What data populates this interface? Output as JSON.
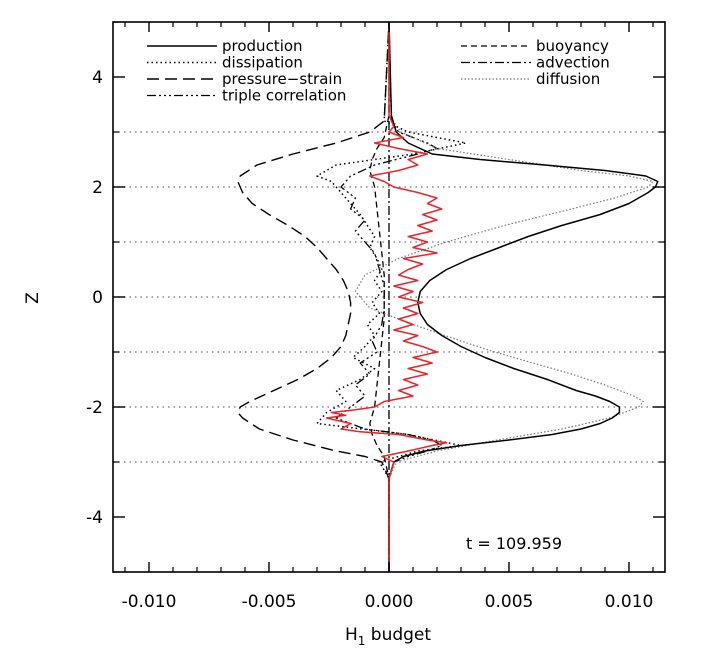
{
  "chart_data": {
    "type": "line",
    "xlabel": "H",
    "xlabel_sub": "1",
    "xlabel_rest": " budget",
    "ylabel": "Z",
    "xlim": [
      -0.0115,
      0.0115
    ],
    "ylim": [
      -5,
      5
    ],
    "x_ticks": [
      -0.01,
      -0.005,
      0.0,
      0.005,
      0.01
    ],
    "x_tick_labels": [
      "-0.010",
      "-0.005",
      "0.000",
      "0.005",
      "0.010"
    ],
    "y_ticks": [
      -4,
      -2,
      0,
      2,
      4
    ],
    "y_tick_labels": [
      "-4",
      "-2",
      "0",
      "2",
      "4"
    ],
    "reference_lines_y": [
      -3,
      -2,
      -1,
      0,
      1,
      2,
      3
    ],
    "annotation": "t  =  109.959",
    "legend": {
      "left": [
        {
          "label": "production",
          "style": "solid"
        },
        {
          "label": "dissipation",
          "style": "dotted"
        },
        {
          "label": "pressure−strain",
          "style": "longdash"
        },
        {
          "label": "triple correlation",
          "style": "dashdotdotdot"
        }
      ],
      "right": [
        {
          "label": "buoyancy",
          "style": "dashed"
        },
        {
          "label": "advection",
          "style": "dashdot"
        },
        {
          "label": "diffusion",
          "style": "grayfine"
        }
      ]
    },
    "series": [
      {
        "name": "production",
        "style": "solid",
        "color": "#000000",
        "z": [
          -5,
          -3.3,
          -3.0,
          -2.9,
          -2.8,
          -2.7,
          -2.6,
          -2.5,
          -2.4,
          -2.3,
          -2.2,
          -2.1,
          -2.0,
          -1.9,
          -1.8,
          -1.7,
          -1.5,
          -1.3,
          -1.1,
          -0.9,
          -0.7,
          -0.5,
          -0.3,
          -0.1,
          0.1,
          0.3,
          0.5,
          0.7,
          0.9,
          1.1,
          1.3,
          1.5,
          1.7,
          1.9,
          2.0,
          2.1,
          2.2,
          2.3,
          2.4,
          2.5,
          2.6,
          2.8,
          3.0,
          3.3,
          5
        ],
        "x": [
          0.0,
          0.0,
          0.0002,
          0.0006,
          0.0015,
          0.003,
          0.005,
          0.0068,
          0.008,
          0.0088,
          0.0093,
          0.0096,
          0.0096,
          0.0092,
          0.0086,
          0.0078,
          0.0066,
          0.0052,
          0.004,
          0.003,
          0.0022,
          0.0016,
          0.0013,
          0.0012,
          0.0013,
          0.0017,
          0.0024,
          0.0034,
          0.0046,
          0.0058,
          0.0072,
          0.0088,
          0.01,
          0.0108,
          0.0111,
          0.0112,
          0.0107,
          0.009,
          0.0065,
          0.0038,
          0.0018,
          0.0008,
          0.0003,
          0.0001,
          0.0
        ]
      },
      {
        "name": "dissipation",
        "style": "dotted",
        "color": "#000000",
        "z": [
          -5,
          -3.3,
          -3.0,
          -2.8,
          -2.7,
          -2.5,
          -2.3,
          -2.1,
          -1.9,
          -1.7,
          -1.5,
          -1.3,
          -1.1,
          -0.9,
          -0.7,
          -0.5,
          -0.3,
          -0.1,
          0.1,
          0.3,
          0.5,
          0.7,
          0.9,
          1.1,
          1.3,
          1.5,
          1.7,
          1.9,
          2.1,
          2.2,
          2.4,
          2.6,
          2.8,
          3.0,
          3.2,
          5
        ],
        "x": [
          0.0,
          0.0,
          -0.0004,
          0.0012,
          0.003,
          0.0008,
          -0.003,
          -0.0026,
          -0.0018,
          -0.0022,
          -0.0012,
          -0.0006,
          -0.0015,
          -0.001,
          -0.0006,
          -0.0009,
          -0.0004,
          -0.0007,
          -0.0003,
          -0.0006,
          -0.0003,
          -0.0005,
          -0.0008,
          -0.0006,
          -0.0009,
          -0.0012,
          -0.0016,
          -0.002,
          -0.0024,
          -0.003,
          -0.0022,
          0.001,
          0.0032,
          0.0008,
          -0.0002,
          0.0
        ]
      },
      {
        "name": "pressure−strain",
        "style": "longdash",
        "color": "#000000",
        "z": [
          -5,
          -3.3,
          -3.0,
          -2.9,
          -2.8,
          -2.6,
          -2.4,
          -2.2,
          -2.1,
          -2.0,
          -1.9,
          -1.7,
          -1.5,
          -1.3,
          -1.1,
          -0.9,
          -0.7,
          -0.5,
          -0.3,
          -0.1,
          0.1,
          0.3,
          0.5,
          0.7,
          0.9,
          1.1,
          1.3,
          1.5,
          1.7,
          1.9,
          2.1,
          2.2,
          2.4,
          2.6,
          2.8,
          3.0,
          3.2,
          5
        ],
        "x": [
          0.0,
          0.0,
          -0.0003,
          -0.001,
          -0.0022,
          -0.004,
          -0.0054,
          -0.0061,
          -0.0063,
          -0.0062,
          -0.0058,
          -0.0048,
          -0.0038,
          -0.003,
          -0.0024,
          -0.002,
          -0.0018,
          -0.0017,
          -0.0016,
          -0.0016,
          -0.0017,
          -0.0019,
          -0.0022,
          -0.0026,
          -0.003,
          -0.0035,
          -0.0042,
          -0.005,
          -0.0057,
          -0.0061,
          -0.0063,
          -0.0062,
          -0.0055,
          -0.004,
          -0.0022,
          -0.0008,
          -0.0002,
          0.0
        ]
      },
      {
        "name": "triple correlation",
        "style": "dashdotdotdot",
        "color": "#000000",
        "z": [
          -5,
          -3.3,
          -3.0,
          -2.9,
          -2.8,
          -2.7,
          -2.6,
          -2.5,
          -2.4,
          -2.2,
          -2.0,
          -1.8,
          -1.6,
          -1.4,
          -1.2,
          -1.0,
          -0.8,
          -0.5,
          -0.2,
          0.2,
          0.5,
          0.8,
          1.0,
          1.2,
          1.4,
          1.6,
          1.8,
          2.0,
          2.2,
          2.4,
          2.6,
          2.7,
          2.8,
          2.9,
          3.0,
          3.2,
          5
        ],
        "x": [
          0.0,
          0.0,
          0.0002,
          0.0008,
          0.0016,
          0.0022,
          0.0018,
          0.0008,
          -0.001,
          -0.0022,
          -0.0016,
          -0.001,
          -0.0014,
          -0.0008,
          -0.0012,
          -0.0005,
          -0.0007,
          -0.0003,
          -0.0002,
          -0.0002,
          -0.0004,
          -0.0006,
          -0.001,
          -0.0014,
          -0.001,
          -0.0016,
          -0.0014,
          -0.002,
          -0.0016,
          -0.0006,
          0.0012,
          0.002,
          0.0016,
          0.001,
          0.0004,
          0.0001,
          0.0
        ]
      },
      {
        "name": "buoyancy",
        "style": "dashed",
        "color": "#000000",
        "z": [
          -5,
          -3.3,
          -2.9,
          -2.7,
          -2.5,
          -2.3,
          -2.0,
          -1.6,
          -1.2,
          -0.8,
          -0.4,
          0.0,
          0.4,
          0.8,
          1.2,
          1.6,
          2.0,
          2.3,
          2.5,
          2.7,
          2.9,
          3.3,
          5
        ],
        "x": [
          0.0,
          0.0,
          -0.0002,
          -0.0005,
          -0.0007,
          -0.0008,
          -0.0006,
          -0.0005,
          -0.0004,
          -0.0003,
          -0.0002,
          -0.0002,
          -0.0002,
          -0.0003,
          -0.0004,
          -0.0005,
          -0.0006,
          -0.0008,
          -0.0007,
          -0.0005,
          -0.0002,
          0.0,
          0.0
        ]
      },
      {
        "name": "advection",
        "style": "dashdot",
        "color": "#000000",
        "z": [
          -5,
          5
        ],
        "x": [
          0.0,
          0.0
        ]
      },
      {
        "name": "diffusion",
        "style": "grayfine",
        "color": "#777777",
        "z": [
          -5,
          -3.3,
          -3.0,
          -2.8,
          -2.6,
          -2.4,
          -2.2,
          -2.0,
          -1.9,
          -1.8,
          -1.6,
          -1.4,
          -1.2,
          -1.0,
          -0.8,
          -0.5,
          -0.2,
          0.1,
          0.4,
          0.7,
          1.0,
          1.3,
          1.6,
          1.8,
          2.0,
          2.1,
          2.2,
          2.3,
          2.5,
          2.7,
          3.0,
          3.3,
          5
        ],
        "x": [
          0.0,
          0.0,
          0.0003,
          0.002,
          0.0045,
          0.0072,
          0.0092,
          0.0104,
          0.0106,
          0.0102,
          0.009,
          0.0076,
          0.006,
          0.0044,
          0.003,
          0.001,
          -0.0008,
          -0.0014,
          -0.001,
          0.0004,
          0.0024,
          0.0048,
          0.0076,
          0.0094,
          0.0108,
          0.011,
          0.01,
          0.008,
          0.005,
          0.002,
          0.0005,
          0.0,
          0.0
        ]
      },
      {
        "name": "sum",
        "style": "red",
        "color": "#e8262a",
        "z": [
          -5,
          -3.3,
          -3.0,
          -2.9,
          -2.8,
          -2.7,
          -2.65,
          -2.6,
          -2.5,
          -2.45,
          -2.4,
          -2.3,
          -2.2,
          -2.15,
          -2.1,
          -2.05,
          -2.0,
          -1.9,
          -1.8,
          -1.7,
          -1.6,
          -1.5,
          -1.4,
          -1.3,
          -1.2,
          -1.1,
          -1.0,
          -0.9,
          -0.8,
          -0.7,
          -0.6,
          -0.5,
          -0.4,
          -0.3,
          -0.2,
          -0.1,
          0.0,
          0.1,
          0.2,
          0.3,
          0.4,
          0.5,
          0.6,
          0.7,
          0.8,
          0.9,
          1.0,
          1.1,
          1.2,
          1.3,
          1.4,
          1.5,
          1.6,
          1.7,
          1.8,
          1.9,
          2.0,
          2.1,
          2.2,
          2.3,
          2.4,
          2.5,
          2.6,
          2.7,
          2.8,
          2.9,
          3.0,
          3.1,
          3.3,
          5
        ],
        "x": [
          0.0,
          0.0,
          0.0002,
          -0.0003,
          0.0008,
          0.0018,
          0.0024,
          0.0016,
          0.0004,
          -0.0012,
          -0.002,
          -0.0016,
          -0.0026,
          -0.0018,
          -0.0024,
          -0.0014,
          -0.0006,
          -0.0002,
          0.001,
          0.0004,
          0.0012,
          0.0006,
          0.0016,
          0.0008,
          0.0018,
          0.001,
          0.002,
          0.0014,
          0.0006,
          0.0012,
          0.0002,
          0.001,
          0.0004,
          0.0012,
          0.0006,
          0.0014,
          0.0004,
          0.001,
          0.0002,
          0.0012,
          0.0004,
          0.0008,
          0.0014,
          0.0006,
          0.002,
          0.001,
          0.0016,
          0.0008,
          0.0018,
          0.0012,
          0.002,
          0.0014,
          0.0022,
          0.0016,
          0.002,
          0.0012,
          0.0002,
          -0.0002,
          -0.0008,
          0.0004,
          0.0012,
          0.0008,
          0.0016,
          0.0004,
          -0.0006,
          0.0006,
          0.0,
          0.0002,
          0.0,
          0.0
        ]
      }
    ]
  }
}
